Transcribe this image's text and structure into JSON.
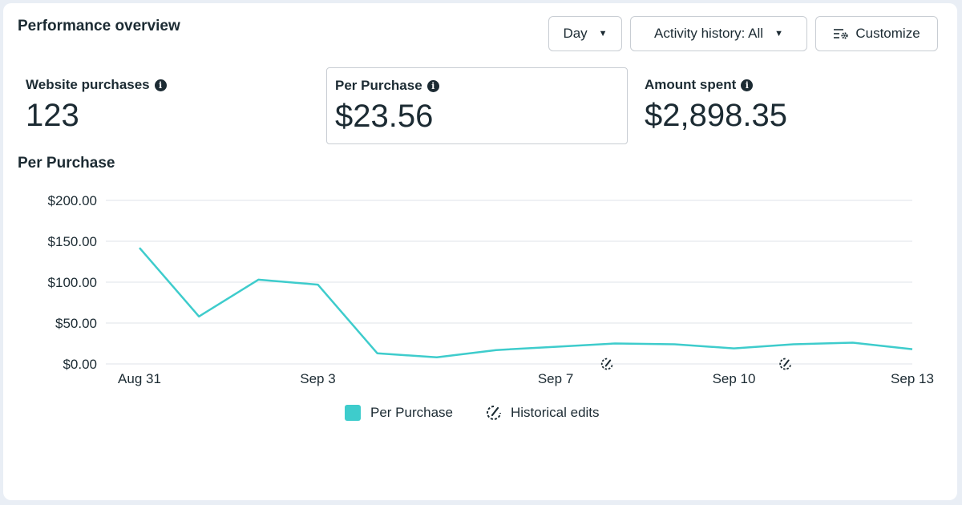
{
  "header": {
    "title": "Performance overview",
    "day_label": "Day",
    "activity_label": "Activity history: All",
    "customize_label": "Customize"
  },
  "metrics": [
    {
      "label": "Website purchases",
      "value": "123"
    },
    {
      "label": "Per Purchase",
      "value": "$23.56"
    },
    {
      "label": "Amount spent",
      "value": "$2,898.35"
    }
  ],
  "chart_title": "Per Purchase",
  "chart_data": {
    "type": "line",
    "x": [
      "Aug 31",
      "Sep 1",
      "Sep 2",
      "Sep 3",
      "Sep 4",
      "Sep 5",
      "Sep 6",
      "Sep 7",
      "Sep 8",
      "Sep 9",
      "Sep 10",
      "Sep 11",
      "Sep 12",
      "Sep 13"
    ],
    "x_tick_labels": [
      "Aug 31",
      "Sep 3",
      "Sep 7",
      "Sep 10",
      "Sep 13"
    ],
    "y_tick_labels": [
      "$200.00",
      "$150.00",
      "$100.00",
      "$50.00",
      "$0.00"
    ],
    "ylim": [
      0,
      200
    ],
    "grid": true,
    "color": "#3ecccc",
    "series": [
      {
        "name": "Per Purchase",
        "values": [
          142,
          58,
          103,
          97,
          13,
          8,
          17,
          21,
          25,
          24,
          19,
          24,
          26,
          18
        ]
      }
    ],
    "historical_edits_at": [
      "Sep 8",
      "Sep 11"
    ],
    "legend": [
      {
        "label": "Per Purchase",
        "icon": "color-swatch"
      },
      {
        "label": "Historical edits",
        "icon": "historical-edit-icon"
      }
    ],
    "legend_position": "bottom"
  }
}
